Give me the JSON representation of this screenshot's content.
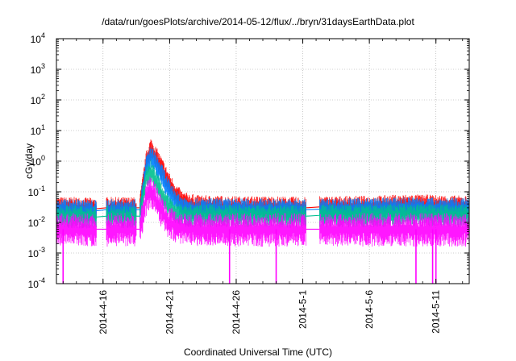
{
  "chart_data": {
    "type": "line",
    "title": "/data/run/goesPlots/archive/2014-05-12/flux/../bryn/31daysEarthData.plot",
    "xlabel": "Coordinated Universal Time (UTC)",
    "ylabel": "cGy/day",
    "y_scale": "log",
    "ylim": [
      0.0001,
      10000
    ],
    "y_ticks": [
      {
        "base": "10",
        "exp": "-4"
      },
      {
        "base": "10",
        "exp": "-3"
      },
      {
        "base": "10",
        "exp": "-2"
      },
      {
        "base": "10",
        "exp": "-1"
      },
      {
        "base": "10",
        "exp": "0"
      },
      {
        "base": "10",
        "exp": "1"
      },
      {
        "base": "10",
        "exp": "2"
      },
      {
        "base": "10",
        "exp": "3"
      },
      {
        "base": "10",
        "exp": "4"
      }
    ],
    "x_start": "2014-04-12T12:00",
    "x_end": "2014-05-13T12:00",
    "x_ticks": [
      {
        "label": "2014-4-16",
        "date": "2014-04-16"
      },
      {
        "label": "2014-4-21",
        "date": "2014-04-21"
      },
      {
        "label": "2014-4-26",
        "date": "2014-04-26"
      },
      {
        "label": "2014-5-1",
        "date": "2014-05-01"
      },
      {
        "label": "2014-5-6",
        "date": "2014-05-06"
      },
      {
        "label": "2014-5-11",
        "date": "2014-05-11"
      }
    ],
    "grid": true,
    "data_gaps": [
      {
        "start": "2014-04-15T12:00",
        "end": "2014-04-16T06:00"
      },
      {
        "start": "2014-04-18T12:00",
        "end": "2014-04-18T18:00"
      },
      {
        "start": "2014-05-01T06:00",
        "end": "2014-05-02T06:00"
      }
    ],
    "series": [
      {
        "color": "#ff0000",
        "points": [
          [
            "2014-04-12T12:00",
            0.03
          ],
          [
            "2014-04-14T00:00",
            0.03
          ],
          [
            "2014-04-15T12:00",
            0.028
          ],
          [
            "2014-04-16T06:00",
            0.03
          ],
          [
            "2014-04-18T12:00",
            0.03
          ],
          [
            "2014-04-18T18:00",
            0.03
          ],
          [
            "2014-04-19T06:00",
            1.0
          ],
          [
            "2014-04-19T14:00",
            2.6
          ],
          [
            "2014-04-20T00:00",
            1.3
          ],
          [
            "2014-04-20T12:00",
            0.5
          ],
          [
            "2014-04-21T00:00",
            0.18
          ],
          [
            "2014-04-21T12:00",
            0.08
          ],
          [
            "2014-04-22T00:00",
            0.045
          ],
          [
            "2014-04-23T00:00",
            0.035
          ],
          [
            "2014-04-26T00:00",
            0.032
          ],
          [
            "2014-04-29T00:00",
            0.032
          ],
          [
            "2014-05-01T06:00",
            0.03
          ],
          [
            "2014-05-02T06:00",
            0.032
          ],
          [
            "2014-05-06T00:00",
            0.033
          ],
          [
            "2014-05-09T00:00",
            0.037
          ],
          [
            "2014-05-11T00:00",
            0.035
          ],
          [
            "2014-05-13T12:00",
            0.033
          ]
        ]
      },
      {
        "color": "#0080ff",
        "points": [
          [
            "2014-04-12T12:00",
            0.026
          ],
          [
            "2014-04-14T00:00",
            0.026
          ],
          [
            "2014-04-15T12:00",
            0.024
          ],
          [
            "2014-04-16T06:00",
            0.026
          ],
          [
            "2014-04-18T12:00",
            0.026
          ],
          [
            "2014-04-18T18:00",
            0.026
          ],
          [
            "2014-04-19T06:00",
            0.7
          ],
          [
            "2014-04-19T14:00",
            1.5
          ],
          [
            "2014-04-20T00:00",
            0.8
          ],
          [
            "2014-04-20T12:00",
            0.3
          ],
          [
            "2014-04-21T00:00",
            0.1
          ],
          [
            "2014-04-21T12:00",
            0.05
          ],
          [
            "2014-04-22T00:00",
            0.032
          ],
          [
            "2014-04-23T00:00",
            0.028
          ],
          [
            "2014-04-26T00:00",
            0.027
          ],
          [
            "2014-04-29T00:00",
            0.027
          ],
          [
            "2014-05-01T06:00",
            0.026
          ],
          [
            "2014-05-02T06:00",
            0.027
          ],
          [
            "2014-05-06T00:00",
            0.028
          ],
          [
            "2014-05-09T00:00",
            0.03
          ],
          [
            "2014-05-11T00:00",
            0.029
          ],
          [
            "2014-05-13T12:00",
            0.028
          ]
        ]
      },
      {
        "color": "#00c090",
        "points": [
          [
            "2014-04-12T12:00",
            0.016
          ],
          [
            "2014-04-14T00:00",
            0.016
          ],
          [
            "2014-04-15T12:00",
            0.015
          ],
          [
            "2014-04-16T06:00",
            0.016
          ],
          [
            "2014-04-18T12:00",
            0.016
          ],
          [
            "2014-04-18T18:00",
            0.016
          ],
          [
            "2014-04-19T06:00",
            0.3
          ],
          [
            "2014-04-19T14:00",
            0.5
          ],
          [
            "2014-04-20T00:00",
            0.22
          ],
          [
            "2014-04-20T12:00",
            0.07
          ],
          [
            "2014-04-21T00:00",
            0.03
          ],
          [
            "2014-04-21T12:00",
            0.022
          ],
          [
            "2014-04-22T00:00",
            0.018
          ],
          [
            "2014-04-23T00:00",
            0.017
          ],
          [
            "2014-04-26T00:00",
            0.017
          ],
          [
            "2014-04-29T00:00",
            0.017
          ],
          [
            "2014-05-01T06:00",
            0.016
          ],
          [
            "2014-05-02T06:00",
            0.017
          ],
          [
            "2014-05-06T00:00",
            0.017
          ],
          [
            "2014-05-09T00:00",
            0.018
          ],
          [
            "2014-05-11T00:00",
            0.018
          ],
          [
            "2014-05-13T12:00",
            0.017
          ]
        ]
      },
      {
        "color": "#ff00ff",
        "points": [
          [
            "2014-04-12T12:00",
            0.006
          ],
          [
            "2014-04-14T00:00",
            0.006
          ],
          [
            "2014-04-15T12:00",
            0.006
          ],
          [
            "2014-04-16T06:00",
            0.006
          ],
          [
            "2014-04-18T12:00",
            0.006
          ],
          [
            "2014-04-18T18:00",
            0.006
          ],
          [
            "2014-04-19T06:00",
            0.06
          ],
          [
            "2014-04-19T14:00",
            0.12
          ],
          [
            "2014-04-20T00:00",
            0.05
          ],
          [
            "2014-04-20T12:00",
            0.02
          ],
          [
            "2014-04-21T00:00",
            0.01
          ],
          [
            "2014-04-21T12:00",
            0.008
          ],
          [
            "2014-04-22T00:00",
            0.007
          ],
          [
            "2014-04-23T00:00",
            0.006
          ],
          [
            "2014-04-26T00:00",
            0.006
          ],
          [
            "2014-04-29T00:00",
            0.006
          ],
          [
            "2014-05-01T06:00",
            0.006
          ],
          [
            "2014-05-02T06:00",
            0.006
          ],
          [
            "2014-05-06T00:00",
            0.006
          ],
          [
            "2014-05-09T00:00",
            0.006
          ],
          [
            "2014-05-11T00:00",
            0.006
          ],
          [
            "2014-05-13T12:00",
            0.006
          ]
        ]
      }
    ],
    "magenta_dropouts": [
      "2014-04-13T00:00",
      "2014-04-25T12:00",
      "2014-04-29T00:00",
      "2014-05-09T12:00",
      "2014-05-10T18:00",
      "2014-05-11T00:00"
    ]
  }
}
